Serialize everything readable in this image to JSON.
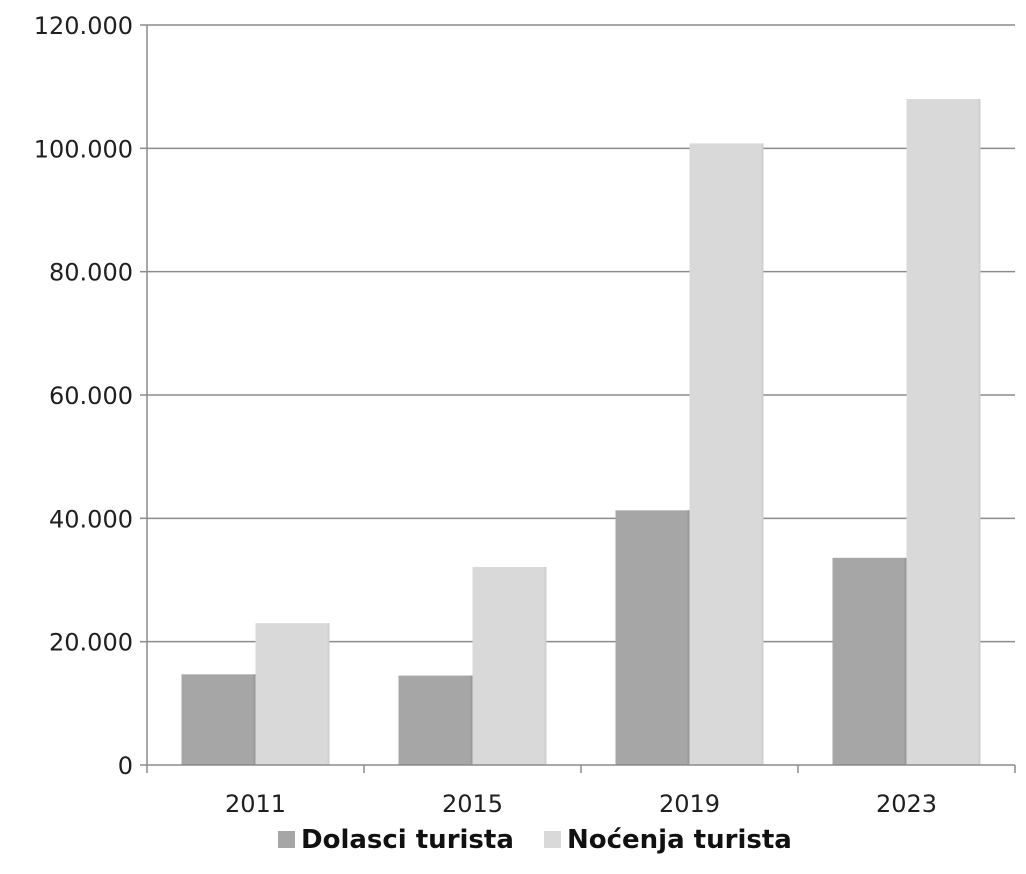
{
  "chart_data": {
    "type": "bar",
    "categories": [
      "2011",
      "2015",
      "2019",
      "2023"
    ],
    "series": [
      {
        "name": "Dolasci turista",
        "values": [
          14700,
          14500,
          41300,
          33600
        ],
        "color": "#a6a6a6"
      },
      {
        "name": "Noćenja turista",
        "values": [
          23000,
          32100,
          100800,
          108000
        ],
        "color": "#d9d9d9"
      }
    ],
    "yticks": [
      "0",
      "20.000",
      "40.000",
      "60.000",
      "80.000",
      "100.000",
      "120.000"
    ],
    "ylim": [
      0,
      120000
    ],
    "ystep": 20000,
    "grid": true,
    "legend_position": "bottom",
    "title": "",
    "xlabel": "",
    "ylabel": ""
  }
}
